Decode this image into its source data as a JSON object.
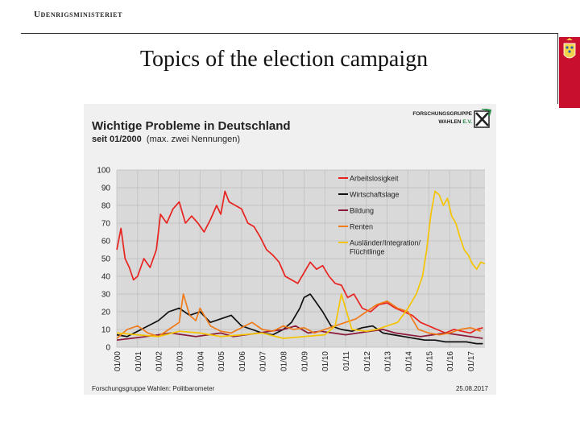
{
  "header": {
    "ministry": "Udenrigsministeriet",
    "slide_title": "Topics of the election campaign"
  },
  "colors": {
    "crest_red": "#c8102e",
    "panel_bg": "#f0f0f0",
    "plot_bg": "#d9d9d9"
  },
  "chart_data": {
    "type": "line",
    "title": "Wichtige Probleme in Deutschland",
    "subtitle_bold": "seit 01/2000",
    "subtitle_rest": "(max. zwei Nennungen)",
    "logo_text_line1": "FORSCHUNGSGRUPPE",
    "logo_text_line2": "WAHLEN",
    "logo_text_ev": "E.V.",
    "source": "Forschungsgruppe Wahlen: Politbarometer",
    "date": "25.08.2017",
    "ylim": [
      0,
      100
    ],
    "yticks": [
      "0",
      "10",
      "20",
      "30",
      "40",
      "50",
      "60",
      "70",
      "80",
      "90",
      "100"
    ],
    "xlim": [
      2000,
      2017.7
    ],
    "xticks": [
      "01/00",
      "01/01",
      "01/02",
      "01/03",
      "01/04",
      "01/05",
      "01/06",
      "01/07",
      "01/08",
      "01/09",
      "01/10",
      "01/11",
      "01/12",
      "01/13",
      "01/14",
      "01/15",
      "01/16",
      "01/17"
    ],
    "grid": true,
    "legend": "top-right",
    "series": [
      {
        "name": "Arbeitslosigkeit",
        "color": "#e8231f",
        "x": [
          2000.0,
          2000.2,
          2000.4,
          2000.6,
          2000.8,
          2001.0,
          2001.3,
          2001.6,
          2001.9,
          2002.1,
          2002.4,
          2002.7,
          2003.0,
          2003.3,
          2003.6,
          2003.9,
          2004.2,
          2004.5,
          2004.8,
          2005.0,
          2005.2,
          2005.4,
          2005.7,
          2006.0,
          2006.3,
          2006.6,
          2006.9,
          2007.2,
          2007.5,
          2007.8,
          2008.1,
          2008.4,
          2008.7,
          2009.0,
          2009.3,
          2009.6,
          2009.9,
          2010.2,
          2010.5,
          2010.8,
          2011.1,
          2011.4,
          2011.8,
          2012.2,
          2012.6,
          2013.0,
          2013.4,
          2013.8,
          2014.2,
          2014.6,
          2015.0,
          2015.4,
          2015.8,
          2016.2,
          2016.6,
          2017.0,
          2017.3,
          2017.6
        ],
        "values": [
          55,
          67,
          50,
          45,
          38,
          40,
          50,
          45,
          55,
          75,
          70,
          78,
          82,
          70,
          74,
          70,
          65,
          72,
          80,
          75,
          88,
          82,
          80,
          78,
          70,
          68,
          62,
          55,
          52,
          48,
          40,
          38,
          36,
          42,
          48,
          44,
          46,
          40,
          36,
          35,
          28,
          30,
          22,
          20,
          24,
          25,
          22,
          20,
          18,
          14,
          12,
          10,
          8,
          10,
          9,
          8,
          10,
          11
        ]
      },
      {
        "name": "Wirtschaftslage",
        "color": "#111111",
        "x": [
          2000.0,
          2000.5,
          2001.0,
          2001.5,
          2002.0,
          2002.5,
          2003.0,
          2003.5,
          2004.0,
          2004.5,
          2005.0,
          2005.5,
          2006.0,
          2006.5,
          2007.0,
          2007.5,
          2008.0,
          2008.4,
          2008.8,
          2009.0,
          2009.3,
          2009.6,
          2009.9,
          2010.3,
          2010.8,
          2011.3,
          2011.8,
          2012.3,
          2012.8,
          2013.3,
          2013.8,
          2014.3,
          2014.8,
          2015.3,
          2015.8,
          2016.3,
          2016.8,
          2017.3,
          2017.6
        ],
        "values": [
          7,
          6,
          9,
          12,
          15,
          20,
          22,
          18,
          20,
          14,
          16,
          18,
          12,
          10,
          8,
          7,
          10,
          14,
          22,
          28,
          30,
          25,
          20,
          12,
          10,
          9,
          11,
          12,
          8,
          7,
          6,
          5,
          4,
          4,
          3,
          3,
          3,
          2,
          2
        ]
      },
      {
        "name": "Bildung",
        "color": "#8b1a3a",
        "x": [
          2000.0,
          2000.7,
          2001.4,
          2002.0,
          2002.6,
          2003.2,
          2003.8,
          2004.4,
          2005.0,
          2005.6,
          2006.2,
          2006.8,
          2007.4,
          2008.0,
          2008.6,
          2009.2,
          2009.8,
          2010.4,
          2011.0,
          2011.6,
          2012.2,
          2012.8,
          2013.4,
          2014.0,
          2014.6,
          2015.2,
          2015.8,
          2016.4,
          2017.0,
          2017.6
        ],
        "values": [
          4,
          5,
          6,
          7,
          8,
          7,
          6,
          7,
          8,
          6,
          7,
          8,
          9,
          10,
          12,
          8,
          9,
          8,
          7,
          8,
          9,
          10,
          8,
          7,
          6,
          7,
          8,
          7,
          6,
          5
        ]
      },
      {
        "name": "Renten",
        "color": "#f07b18",
        "x": [
          2000.0,
          2000.5,
          2001.0,
          2001.5,
          2002.0,
          2002.5,
          2003.0,
          2003.2,
          2003.5,
          2003.8,
          2004.0,
          2004.5,
          2005.0,
          2005.5,
          2006.0,
          2006.5,
          2007.0,
          2007.5,
          2008.0,
          2008.5,
          2009.0,
          2009.5,
          2010.0,
          2010.5,
          2011.0,
          2011.5,
          2012.0,
          2012.5,
          2013.0,
          2013.5,
          2014.0,
          2014.5,
          2015.0,
          2015.5,
          2016.0,
          2016.5,
          2017.0,
          2017.5
        ],
        "values": [
          5,
          10,
          12,
          8,
          6,
          10,
          14,
          30,
          18,
          15,
          22,
          12,
          9,
          8,
          11,
          14,
          10,
          9,
          12,
          10,
          11,
          8,
          10,
          12,
          14,
          16,
          20,
          24,
          26,
          22,
          20,
          10,
          8,
          7,
          8,
          10,
          11,
          9
        ]
      },
      {
        "name": "Ausländer/Integration/ Flüchtlinge",
        "color": "#f5c400",
        "x": [
          2000.0,
          2001.0,
          2002.0,
          2003.0,
          2004.0,
          2005.0,
          2006.0,
          2007.0,
          2008.0,
          2009.0,
          2010.0,
          2010.5,
          2010.8,
          2011.0,
          2011.3,
          2012.0,
          2012.5,
          2013.0,
          2013.5,
          2014.0,
          2014.4,
          2014.7,
          2014.9,
          2015.1,
          2015.3,
          2015.5,
          2015.7,
          2015.9,
          2016.1,
          2016.3,
          2016.5,
          2016.7,
          2016.9,
          2017.1,
          2017.3,
          2017.5,
          2017.7
        ],
        "values": [
          8,
          7,
          6,
          9,
          8,
          6,
          7,
          8,
          5,
          6,
          7,
          12,
          30,
          22,
          10,
          9,
          10,
          12,
          14,
          22,
          30,
          40,
          55,
          75,
          88,
          86,
          80,
          84,
          74,
          70,
          62,
          55,
          52,
          47,
          44,
          48,
          47
        ]
      }
    ]
  }
}
